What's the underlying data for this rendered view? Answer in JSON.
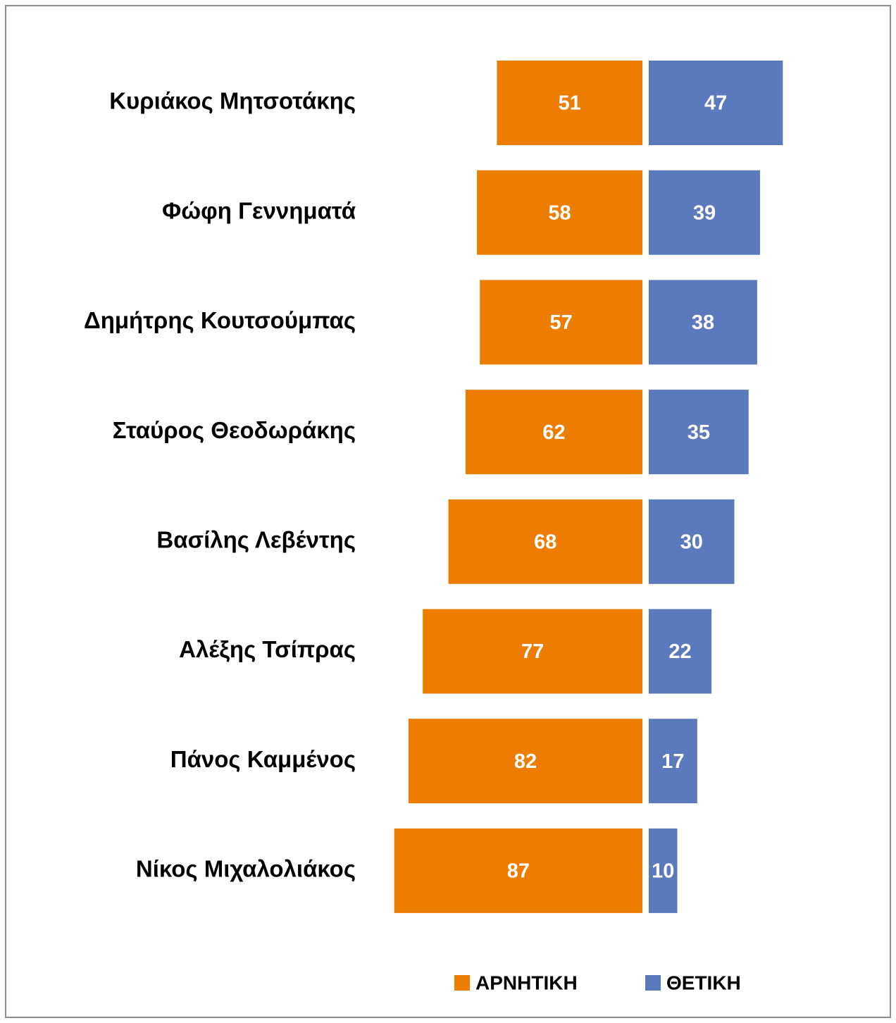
{
  "chart_data": {
    "type": "diverging-bar",
    "categories": [
      "Κυριάκος Μητσοτάκης",
      "Φώφη Γεννηματά",
      "Δημήτρης Κουτσούμπας",
      "Σταύρος Θεοδωράκης",
      "Βασίλης Λεβέντης",
      "Αλέξης Τσίπρας",
      "Πάνος Καμμένος",
      "Νίκος Μιχαλολιάκος"
    ],
    "series": [
      {
        "name": "ΑΡΝΗΤΙΚΗ",
        "color": "#ed7d00",
        "values": [
          51,
          58,
          57,
          62,
          68,
          77,
          82,
          87
        ]
      },
      {
        "name": "ΘΕΤΙΚΗ",
        "color": "#5b7abd",
        "values": [
          47,
          39,
          38,
          35,
          30,
          22,
          17,
          10
        ]
      }
    ],
    "legend": "bottom"
  }
}
